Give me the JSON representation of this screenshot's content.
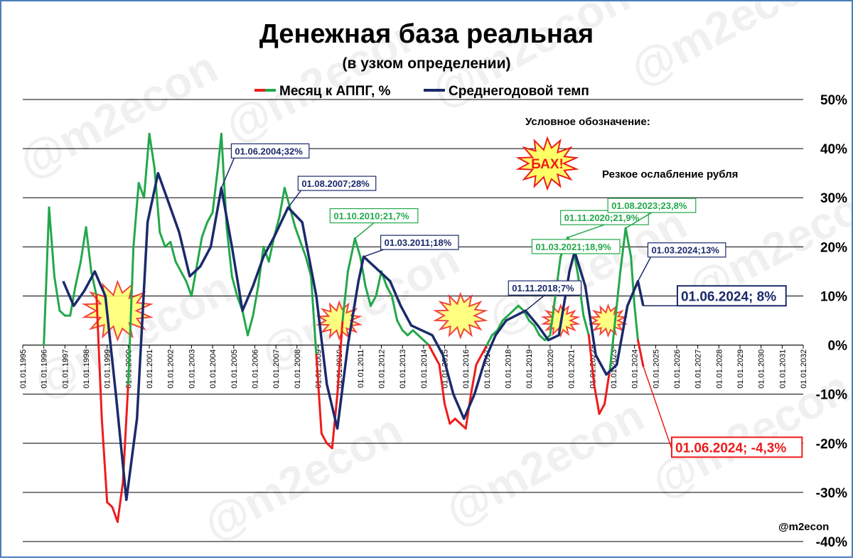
{
  "chart_data": {
    "type": "line",
    "title": "Денежная база реальная",
    "subtitle": "(в узком определении)",
    "legend_position": "top-center",
    "grid": "horizontal",
    "xlim": [
      "1995-01-01",
      "2032-01-01"
    ],
    "ylim": [
      -40,
      50
    ],
    "y_ticks": [
      "50%",
      "40%",
      "30%",
      "20%",
      "10%",
      "0%",
      "-10%",
      "-20%",
      "-30%",
      "-40%"
    ],
    "x_ticks": [
      "01.01.1995",
      "01.01.1996",
      "01.01.1997",
      "01.01.1998",
      "01.01.1999",
      "01.01.2000",
      "01.01.2001",
      "01.01.2002",
      "01.01.2003",
      "01.01.2004",
      "01.01.2005",
      "01.01.2006",
      "01.01.2007",
      "01.01.2008",
      "01.01.2009",
      "01.01.2010",
      "01.01.2011",
      "01.01.2012",
      "01.01.2013",
      "01.01.2014",
      "01.01.2015",
      "01.01.2016",
      "01.01.2017",
      "01.01.2018",
      "01.01.2019",
      "01.01.2020",
      "01.01.2021",
      "01.01.2022",
      "01.01.2023",
      "01.01.2024",
      "01.01.2025",
      "01.01.2026",
      "01.01.2027",
      "01.01.2028",
      "01.01.2029",
      "01.01.2030",
      "01.01.2031",
      "01.01.2032"
    ],
    "series": [
      {
        "name": "Месяц к АППГ, %",
        "color_positive": "#22a84a",
        "color_negative": "#ee1c1c",
        "points": [
          [
            "1996-01-01",
            0
          ],
          [
            "1996-04-01",
            28
          ],
          [
            "1996-07-01",
            14
          ],
          [
            "1996-10-01",
            7
          ],
          [
            "1997-01-01",
            6
          ],
          [
            "1997-04-01",
            6
          ],
          [
            "1997-07-01",
            12
          ],
          [
            "1997-10-01",
            17
          ],
          [
            "1998-01-01",
            24
          ],
          [
            "1998-04-01",
            15
          ],
          [
            "1998-07-01",
            10
          ],
          [
            "1998-10-01",
            -15
          ],
          [
            "1999-01-01",
            -32
          ],
          [
            "1999-04-01",
            -33
          ],
          [
            "1999-07-01",
            -36
          ],
          [
            "1999-10-01",
            -28
          ],
          [
            "2000-01-01",
            -8
          ],
          [
            "2000-04-01",
            20
          ],
          [
            "2000-07-01",
            33
          ],
          [
            "2000-10-01",
            30
          ],
          [
            "2001-01-01",
            43
          ],
          [
            "2001-04-01",
            36
          ],
          [
            "2001-07-01",
            23
          ],
          [
            "2001-10-01",
            20
          ],
          [
            "2002-01-01",
            21
          ],
          [
            "2002-04-01",
            17
          ],
          [
            "2002-07-01",
            15
          ],
          [
            "2002-10-01",
            13
          ],
          [
            "2003-01-01",
            10
          ],
          [
            "2003-04-01",
            16
          ],
          [
            "2003-07-01",
            22
          ],
          [
            "2003-10-01",
            25
          ],
          [
            "2004-01-01",
            27
          ],
          [
            "2004-04-01",
            36
          ],
          [
            "2004-06-01",
            43
          ],
          [
            "2004-09-01",
            24
          ],
          [
            "2004-12-01",
            14
          ],
          [
            "2005-03-01",
            10
          ],
          [
            "2005-06-01",
            7
          ],
          [
            "2005-09-01",
            2
          ],
          [
            "2005-12-01",
            6
          ],
          [
            "2006-03-01",
            12
          ],
          [
            "2006-06-01",
            20
          ],
          [
            "2006-09-01",
            17
          ],
          [
            "2006-12-01",
            22
          ],
          [
            "2007-03-01",
            26
          ],
          [
            "2007-06-01",
            32
          ],
          [
            "2007-09-01",
            28
          ],
          [
            "2007-12-01",
            24
          ],
          [
            "2008-03-01",
            21
          ],
          [
            "2008-06-01",
            18
          ],
          [
            "2008-09-01",
            14
          ],
          [
            "2008-12-01",
            -2
          ],
          [
            "2009-03-01",
            -18
          ],
          [
            "2009-06-01",
            -20
          ],
          [
            "2009-09-01",
            -21
          ],
          [
            "2009-12-01",
            -10
          ],
          [
            "2010-03-01",
            5
          ],
          [
            "2010-06-01",
            15
          ],
          [
            "2010-10-01",
            21.7
          ],
          [
            "2011-01-01",
            18
          ],
          [
            "2011-04-01",
            12
          ],
          [
            "2011-07-01",
            8
          ],
          [
            "2011-10-01",
            10
          ],
          [
            "2012-01-01",
            15
          ],
          [
            "2012-04-01",
            12
          ],
          [
            "2012-07-01",
            10
          ],
          [
            "2012-10-01",
            5
          ],
          [
            "2013-01-01",
            3
          ],
          [
            "2013-04-01",
            2
          ],
          [
            "2013-07-01",
            3
          ],
          [
            "2013-10-01",
            2
          ],
          [
            "2014-01-01",
            1
          ],
          [
            "2014-04-01",
            0
          ],
          [
            "2014-07-01",
            -2
          ],
          [
            "2014-10-01",
            -4
          ],
          [
            "2015-01-01",
            -12
          ],
          [
            "2015-04-01",
            -16
          ],
          [
            "2015-07-01",
            -15
          ],
          [
            "2015-10-01",
            -16
          ],
          [
            "2016-01-01",
            -17
          ],
          [
            "2016-04-01",
            -10
          ],
          [
            "2016-07-01",
            -4
          ],
          [
            "2016-10-01",
            -2
          ],
          [
            "2017-01-01",
            0
          ],
          [
            "2017-04-01",
            2
          ],
          [
            "2017-07-01",
            3
          ],
          [
            "2017-10-01",
            5
          ],
          [
            "2018-01-01",
            6
          ],
          [
            "2018-04-01",
            7
          ],
          [
            "2018-07-01",
            8
          ],
          [
            "2018-10-01",
            7
          ],
          [
            "2019-01-01",
            5
          ],
          [
            "2019-04-01",
            4
          ],
          [
            "2019-07-01",
            2
          ],
          [
            "2019-10-01",
            1
          ],
          [
            "2020-01-01",
            2
          ],
          [
            "2020-04-01",
            10
          ],
          [
            "2020-07-01",
            18
          ],
          [
            "2020-11-01",
            21.9
          ],
          [
            "2021-02-01",
            20
          ],
          [
            "2021-05-01",
            14
          ],
          [
            "2021-08-01",
            6
          ],
          [
            "2021-11-01",
            2
          ],
          [
            "2022-02-01",
            -8
          ],
          [
            "2022-05-01",
            -14
          ],
          [
            "2022-08-01",
            -12
          ],
          [
            "2022-11-01",
            -5
          ],
          [
            "2023-02-01",
            5
          ],
          [
            "2023-05-01",
            15
          ],
          [
            "2023-08-01",
            23.8
          ],
          [
            "2023-11-01",
            18
          ],
          [
            "2024-01-01",
            8
          ],
          [
            "2024-03-01",
            1
          ],
          [
            "2024-06-01",
            -4.3
          ]
        ]
      },
      {
        "name": "Среднегодовой темп",
        "color": "#1b2a6b",
        "points": [
          [
            "1996-12-01",
            13
          ],
          [
            "1997-06-01",
            8
          ],
          [
            "1997-12-01",
            11
          ],
          [
            "1998-06-01",
            15
          ],
          [
            "1998-12-01",
            10
          ],
          [
            "1999-06-01",
            -10
          ],
          [
            "1999-12-01",
            -31.5
          ],
          [
            "2000-06-01",
            -15
          ],
          [
            "2000-12-01",
            25
          ],
          [
            "2001-06-01",
            35
          ],
          [
            "2001-12-01",
            29
          ],
          [
            "2002-06-01",
            23
          ],
          [
            "2002-12-01",
            14
          ],
          [
            "2003-06-01",
            16
          ],
          [
            "2003-12-01",
            20
          ],
          [
            "2004-06-01",
            32
          ],
          [
            "2004-12-01",
            20
          ],
          [
            "2005-06-01",
            7
          ],
          [
            "2005-12-01",
            12
          ],
          [
            "2006-06-01",
            18
          ],
          [
            "2006-12-01",
            22
          ],
          [
            "2007-08-01",
            28
          ],
          [
            "2008-04-01",
            25
          ],
          [
            "2008-12-01",
            10
          ],
          [
            "2009-06-01",
            -8
          ],
          [
            "2009-12-01",
            -17
          ],
          [
            "2010-06-01",
            0
          ],
          [
            "2010-12-01",
            13
          ],
          [
            "2011-03-01",
            18
          ],
          [
            "2011-12-01",
            15
          ],
          [
            "2012-06-01",
            13
          ],
          [
            "2012-12-01",
            8
          ],
          [
            "2013-06-01",
            4
          ],
          [
            "2013-12-01",
            3
          ],
          [
            "2014-06-01",
            2
          ],
          [
            "2014-12-01",
            -2
          ],
          [
            "2015-06-01",
            -10
          ],
          [
            "2015-12-01",
            -15
          ],
          [
            "2016-06-01",
            -10
          ],
          [
            "2016-12-01",
            -3
          ],
          [
            "2017-06-01",
            2
          ],
          [
            "2017-12-01",
            5
          ],
          [
            "2018-11-01",
            7
          ],
          [
            "2019-06-01",
            4
          ],
          [
            "2019-12-01",
            1
          ],
          [
            "2020-06-01",
            2
          ],
          [
            "2020-12-01",
            15
          ],
          [
            "2021-03-01",
            19
          ],
          [
            "2021-09-01",
            12
          ],
          [
            "2022-03-01",
            -2
          ],
          [
            "2022-09-01",
            -6
          ],
          [
            "2023-03-01",
            -4
          ],
          [
            "2023-09-01",
            8
          ],
          [
            "2024-03-01",
            13
          ],
          [
            "2024-06-01",
            8
          ]
        ]
      }
    ],
    "bursts": [
      {
        "date": "1999-07-01",
        "value": 7,
        "size": 48,
        "label": ""
      },
      {
        "date": "2010-01-01",
        "value": 5,
        "size": 30,
        "label": ""
      },
      {
        "date": "2015-10-01",
        "value": 6,
        "size": 36,
        "label": ""
      },
      {
        "date": "2020-07-01",
        "value": 5,
        "size": 25,
        "label": ""
      },
      {
        "date": "2022-10-01",
        "value": 5,
        "size": 25,
        "label": ""
      },
      {
        "date": "legend",
        "value": null,
        "size": 42,
        "label": "БАХ!"
      }
    ],
    "annotations": [
      {
        "text": "01.06.2004;32%",
        "date": "2004-06-01",
        "value": 32,
        "color": "#1b2a6b",
        "style": "box"
      },
      {
        "text": "01.08.2007;28%",
        "date": "2007-08-01",
        "value": 28,
        "color": "#1b2a6b",
        "style": "box"
      },
      {
        "text": "01.10.2010;21,7%",
        "date": "2010-10-01",
        "value": 21.7,
        "color": "#22a84a",
        "style": "box"
      },
      {
        "text": "01.03.2011;18%",
        "date": "2011-03-01",
        "value": 18,
        "color": "#1b2a6b",
        "style": "box"
      },
      {
        "text": "01.11.2018;7%",
        "date": "2018-11-01",
        "value": 7,
        "color": "#1b2a6b",
        "style": "box"
      },
      {
        "text": "01.11.2020;21,9%",
        "date": "2020-11-01",
        "value": 21.9,
        "color": "#22a84a",
        "style": "box"
      },
      {
        "text": "01.03.2021;18,9%",
        "date": "2021-03-01",
        "value": 18.9,
        "color": "#22a84a",
        "style": "box"
      },
      {
        "text": "01.08.2023;23,8%",
        "date": "2023-08-01",
        "value": 23.8,
        "color": "#22a84a",
        "style": "box"
      },
      {
        "text": "01.03.2024;13%",
        "date": "2024-03-01",
        "value": 13,
        "color": "#1b2a6b",
        "style": "box"
      },
      {
        "text": "01.06.2024; 8%",
        "date": "2024-06-01",
        "value": 8,
        "color": "#1b2a6b",
        "style": "big"
      },
      {
        "text": "01.06.2024; -4,3%",
        "date": "2024-06-01",
        "value": -4.3,
        "color": "#ee1c1c",
        "style": "big"
      }
    ],
    "legend_note": {
      "heading": "Условное обозначение:",
      "description": "Резкое ослабление рубля"
    },
    "watermark": "@m2econ",
    "credit": "@m2econ"
  }
}
